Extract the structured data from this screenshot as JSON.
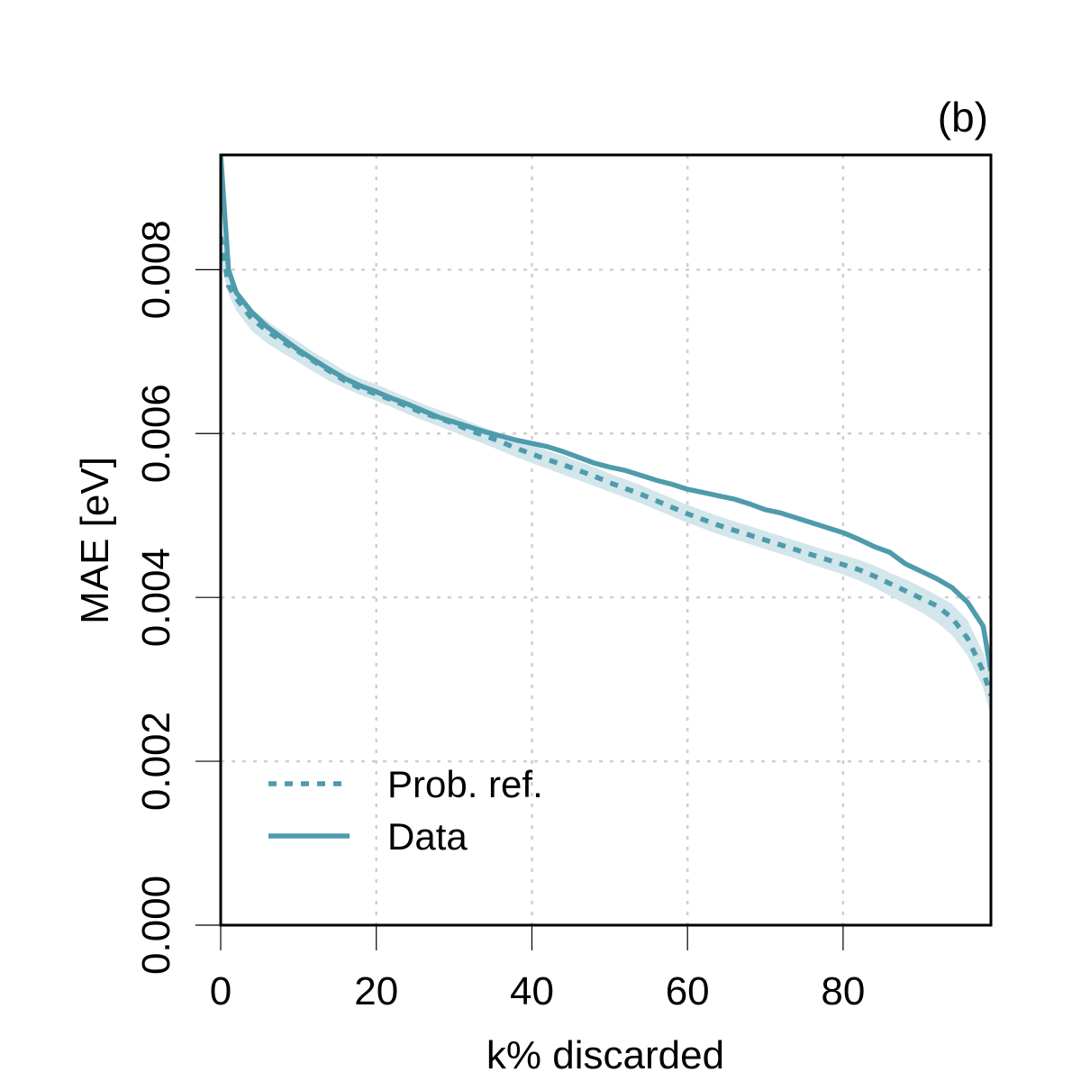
{
  "chart_data": {
    "type": "line",
    "panel_label": "(b)",
    "xlabel": "k% discarded",
    "ylabel": "MAE [eV]",
    "xlim": [
      0,
      99
    ],
    "ylim": [
      0,
      0.0094
    ],
    "xticks": [
      0,
      20,
      40,
      60,
      80
    ],
    "xtick_labels": [
      "0",
      "20",
      "40",
      "60",
      "80"
    ],
    "yticks": [
      0,
      0.002,
      0.004,
      0.006,
      0.008
    ],
    "ytick_labels": [
      "0.000",
      "0.002",
      "0.004",
      "0.006",
      "0.008"
    ],
    "grid": true,
    "legend_position": "bottom-left",
    "colors": {
      "line": "#4e9bab",
      "band": "#d2e6ec",
      "frame": "#000000"
    },
    "series": [
      {
        "name": "Prob. ref.",
        "style": "dotted",
        "x": [
          0,
          1,
          2,
          4,
          6,
          8,
          10,
          12,
          14,
          16,
          18,
          20,
          22,
          24,
          26,
          28,
          30,
          32,
          34,
          36,
          38,
          40,
          42,
          44,
          46,
          48,
          50,
          52,
          54,
          56,
          58,
          60,
          62,
          64,
          66,
          68,
          70,
          72,
          74,
          76,
          78,
          80,
          82,
          84,
          86,
          88,
          90,
          92,
          94,
          96,
          98,
          99
        ],
        "values": [
          0.0084,
          0.0078,
          0.00765,
          0.0074,
          0.00725,
          0.00712,
          0.007,
          0.00688,
          0.00676,
          0.00664,
          0.00655,
          0.00648,
          0.00641,
          0.00633,
          0.00625,
          0.00619,
          0.00612,
          0.00604,
          0.00597,
          0.0059,
          0.00582,
          0.00575,
          0.00568,
          0.00562,
          0.00555,
          0.00548,
          0.0054,
          0.00533,
          0.00526,
          0.00518,
          0.0051,
          0.00502,
          0.00495,
          0.00488,
          0.00482,
          0.00476,
          0.0047,
          0.00464,
          0.00458,
          0.00452,
          0.00446,
          0.0044,
          0.00434,
          0.00426,
          0.00417,
          0.00408,
          0.00399,
          0.0039,
          0.00375,
          0.0035,
          0.0031,
          0.0028
        ]
      },
      {
        "name": "Data",
        "style": "solid",
        "x": [
          0,
          1,
          2,
          4,
          6,
          8,
          10,
          12,
          14,
          16,
          18,
          20,
          22,
          24,
          26,
          28,
          30,
          32,
          34,
          36,
          38,
          40,
          42,
          44,
          46,
          48,
          50,
          52,
          54,
          56,
          58,
          60,
          62,
          64,
          66,
          68,
          70,
          72,
          74,
          76,
          78,
          80,
          82,
          84,
          86,
          88,
          90,
          92,
          94,
          96,
          98,
          99
        ],
        "values": [
          0.0094,
          0.008,
          0.00772,
          0.00748,
          0.0073,
          0.00716,
          0.00702,
          0.0069,
          0.00678,
          0.00667,
          0.00658,
          0.00651,
          0.00643,
          0.00636,
          0.00628,
          0.0062,
          0.00614,
          0.00608,
          0.00602,
          0.00597,
          0.00592,
          0.00588,
          0.00584,
          0.00578,
          0.00571,
          0.00564,
          0.00559,
          0.00555,
          0.00549,
          0.00543,
          0.00538,
          0.00532,
          0.00528,
          0.00524,
          0.0052,
          0.00514,
          0.00507,
          0.00503,
          0.00497,
          0.00491,
          0.00485,
          0.00479,
          0.00471,
          0.00462,
          0.00455,
          0.00441,
          0.00432,
          0.00423,
          0.00412,
          0.00394,
          0.00365,
          0.0031
        ]
      }
    ],
    "band": {
      "name": "Prob. ref. spread",
      "x": [
        0,
        1,
        2,
        4,
        6,
        8,
        10,
        12,
        14,
        16,
        18,
        20,
        22,
        24,
        26,
        28,
        30,
        32,
        34,
        36,
        38,
        40,
        42,
        44,
        46,
        48,
        50,
        52,
        54,
        56,
        58,
        60,
        62,
        64,
        66,
        68,
        70,
        72,
        74,
        76,
        78,
        80,
        82,
        84,
        86,
        88,
        90,
        92,
        94,
        96,
        98,
        99
      ],
      "lower": [
        0.0081,
        0.0077,
        0.0075,
        0.00725,
        0.0071,
        0.00698,
        0.00687,
        0.00675,
        0.00664,
        0.00655,
        0.00647,
        0.0064,
        0.00632,
        0.00624,
        0.00616,
        0.00609,
        0.00602,
        0.00594,
        0.00587,
        0.00579,
        0.00571,
        0.00564,
        0.00557,
        0.0055,
        0.00543,
        0.00536,
        0.00529,
        0.00522,
        0.00515,
        0.00507,
        0.00499,
        0.00491,
        0.00484,
        0.00477,
        0.00471,
        0.00465,
        0.00459,
        0.00453,
        0.00447,
        0.0044,
        0.00434,
        0.00428,
        0.00421,
        0.00412,
        0.00402,
        0.00392,
        0.00382,
        0.0037,
        0.00354,
        0.00329,
        0.0029,
        0.00255
      ],
      "upper": [
        0.0086,
        0.00792,
        0.00778,
        0.00752,
        0.00737,
        0.00724,
        0.00712,
        0.00699,
        0.00688,
        0.00676,
        0.00667,
        0.0066,
        0.00652,
        0.00644,
        0.00636,
        0.00629,
        0.00622,
        0.00614,
        0.00607,
        0.006,
        0.00593,
        0.00586,
        0.00579,
        0.00573,
        0.00566,
        0.00559,
        0.00551,
        0.00544,
        0.00537,
        0.00529,
        0.00521,
        0.00513,
        0.00506,
        0.00499,
        0.00493,
        0.00487,
        0.00481,
        0.00475,
        0.00469,
        0.00463,
        0.00457,
        0.00452,
        0.00446,
        0.00439,
        0.0043,
        0.00422,
        0.00413,
        0.00403,
        0.00392,
        0.00372,
        0.00333,
        0.00305
      ]
    }
  }
}
